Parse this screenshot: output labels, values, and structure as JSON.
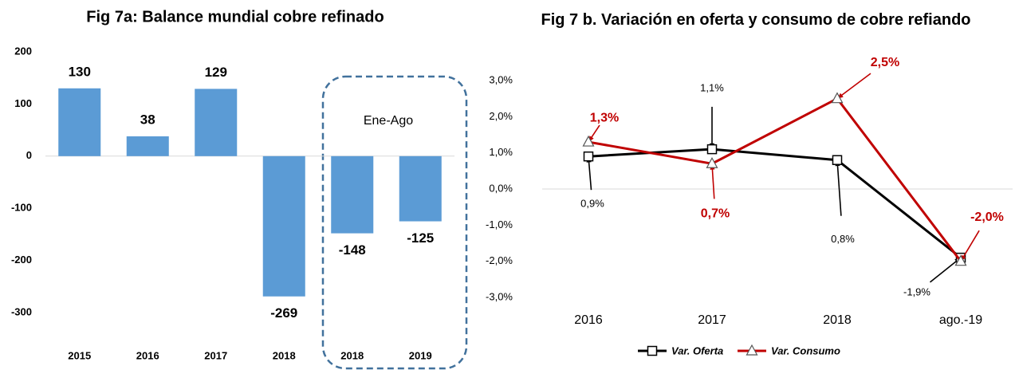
{
  "chart_data": [
    {
      "type": "bar",
      "title": "Fig 7a: Balance mundial cobre refinado",
      "categories": [
        "2015",
        "2016",
        "2017",
        "2018",
        "2018",
        "2019"
      ],
      "values": [
        130,
        38,
        129,
        -269,
        -148,
        -125
      ],
      "color": "#5b9bd5",
      "ylim": [
        -300,
        200
      ],
      "yticks": [
        -300,
        -200,
        -100,
        0,
        100,
        200
      ],
      "grid": false,
      "annotation": "Ene-Ago"
    },
    {
      "type": "line",
      "title": "Fig 7 b. Variación en oferta y consumo de cobre refiando",
      "categories": [
        "2016",
        "2017",
        "2018",
        "ago.-19"
      ],
      "ylim": [
        -3,
        3
      ],
      "yticks": [
        {
          "value": -3,
          "label": "-3,0%"
        },
        {
          "value": -2,
          "label": "-2,0%"
        },
        {
          "value": -1,
          "label": "-1,0%"
        },
        {
          "value": 0,
          "label": "0,0%"
        },
        {
          "value": 1,
          "label": "1,0%"
        },
        {
          "value": 2,
          "label": "2,0%"
        },
        {
          "value": 3,
          "label": "3,0%"
        }
      ],
      "grid": false,
      "legend": "bottom",
      "series": [
        {
          "name": "Var. Oferta",
          "color": "#000000",
          "marker": "square",
          "values": [
            0.9,
            1.1,
            0.8,
            -1.9
          ],
          "value_labels": [
            "0,9%",
            "1,1%",
            "0,8%",
            "-1,9%"
          ]
        },
        {
          "name": "Var. Consumo",
          "color": "#c00000",
          "marker": "triangle",
          "values": [
            1.3,
            0.7,
            2.5,
            -2.0
          ],
          "value_labels": [
            "1,3%",
            "0,7%",
            "2,5%",
            "-2,0%"
          ]
        }
      ]
    }
  ]
}
